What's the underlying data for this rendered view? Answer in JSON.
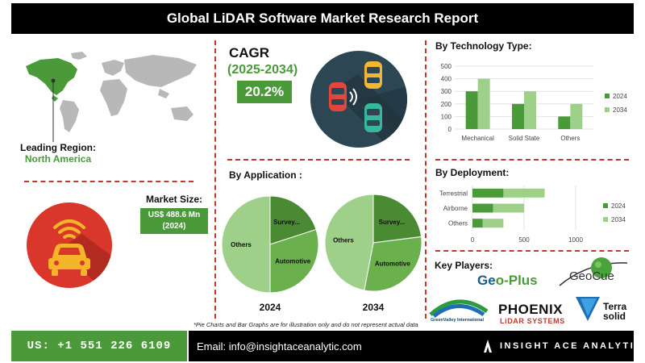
{
  "header": {
    "title": "Global LiDAR Software Market Research Report"
  },
  "region": {
    "label": "Leading Region:",
    "value": "North America"
  },
  "cagr": {
    "title": "CAGR",
    "years": "(2025-2034)",
    "value": "20.2%"
  },
  "market_size": {
    "label": "Market Size:",
    "value_line1": "US$ 488.6 Mn",
    "value_line2": "(2024)"
  },
  "sections": {
    "technology": "By Technology Type:",
    "application": "By Application :",
    "deployment": "By Deployment:",
    "key_players": "Key Players:"
  },
  "colors": {
    "green_dark": "#4a9a3a",
    "green_light": "#9fd08a",
    "green_mid": "#6ab04c",
    "red": "#c0392b",
    "black": "#000000"
  },
  "icons": {
    "map": "world-map",
    "car": "self-driving-cars-icon",
    "wifi_car": "connected-car-icon"
  },
  "key_players": {
    "geoplus_a": "Ge",
    "geoplus_b": "o-Plus",
    "geocue": "GeoCue",
    "greenvalley": "GreenValley International",
    "phoenix": "PHOENIX",
    "phoenix_sub": "LiDAR SYSTEMS",
    "terra_1": "Terra",
    "terra_2": "solid"
  },
  "note": "*Pie Charts and Bar Graphs are for illustration only and do not represent actual data",
  "footer": {
    "phone": "US: +1 551 226 6109",
    "email": "Email: info@insightaceanalytic.com",
    "brand": "INSIGHT ACE ANALYTIC"
  },
  "chart_data": [
    {
      "type": "bar",
      "title": "By Technology Type:",
      "categories": [
        "Mechanical",
        "Solid State",
        "Others"
      ],
      "series": [
        {
          "name": "2024",
          "values": [
            300,
            200,
            100
          ],
          "color": "#4a9a3a"
        },
        {
          "name": "2034",
          "values": [
            400,
            300,
            200
          ],
          "color": "#9fd08a"
        }
      ],
      "ylim": [
        0,
        500
      ],
      "yticks": [
        0,
        100,
        200,
        300,
        400,
        500
      ],
      "legend": "right"
    },
    {
      "type": "pie",
      "title": "By Application :",
      "year": "2024",
      "slices": [
        {
          "label": "Survey...",
          "value": 20,
          "color": "#4a8a32"
        },
        {
          "label": "Automotive",
          "value": 30,
          "color": "#6ab04c"
        },
        {
          "label": "Others",
          "value": 50,
          "color": "#9fd08a"
        }
      ]
    },
    {
      "type": "pie",
      "title": "By Application :",
      "year": "2034",
      "slices": [
        {
          "label": "Survey...",
          "value": 23,
          "color": "#4a8a32"
        },
        {
          "label": "Automotive",
          "value": 30,
          "color": "#6ab04c"
        },
        {
          "label": "Others",
          "value": 47,
          "color": "#9fd08a"
        }
      ]
    },
    {
      "type": "bar",
      "orientation": "horizontal",
      "stacked": true,
      "title": "By Deployment:",
      "categories": [
        "Terrestrial",
        "Airborne",
        "Others"
      ],
      "series": [
        {
          "name": "2024",
          "values": [
            300,
            200,
            100
          ],
          "color": "#4a9a3a"
        },
        {
          "name": "2034",
          "values": [
            400,
            300,
            200
          ],
          "color": "#9fd08a"
        }
      ],
      "xlim": [
        0,
        1000
      ],
      "xticks": [
        0,
        500,
        1000
      ],
      "legend": "right"
    }
  ]
}
